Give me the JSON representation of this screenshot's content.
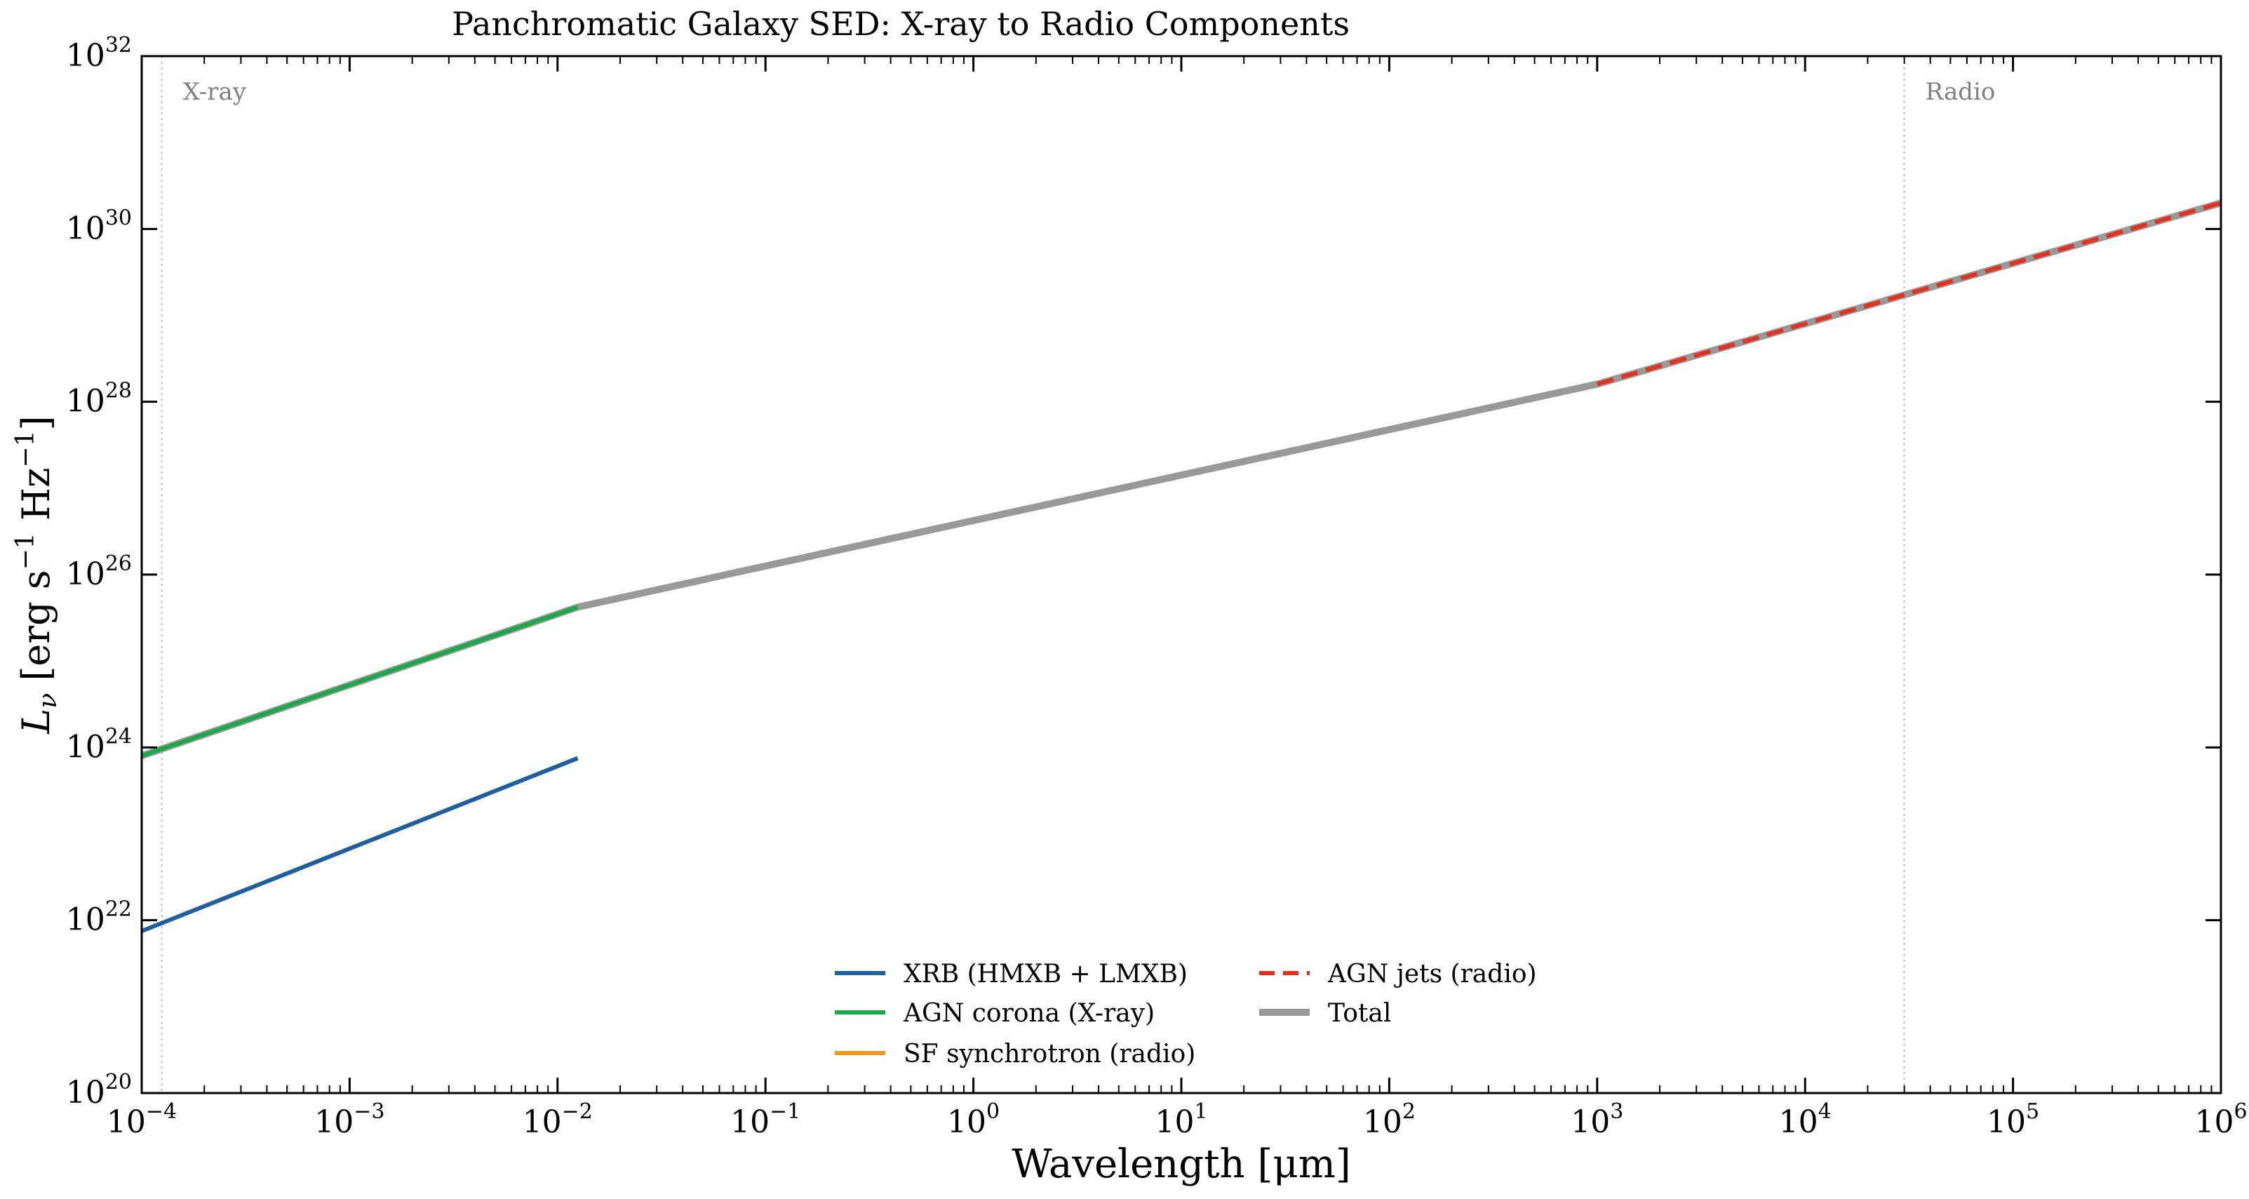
{
  "chart_data": {
    "type": "line",
    "title": "Panchromatic Galaxy SED: X-ray to Radio Components",
    "xlabel": "Wavelength [μm]",
    "ylabel": "Lν [erg s⁻¹ Hz⁻¹]",
    "ylabel_parts": {
      "symbol": "L",
      "subscript": "ν",
      "units_a": " [erg s",
      "exp1": "−1",
      "units_b": " Hz",
      "exp2": "−1",
      "units_c": "]"
    },
    "xscale": "log",
    "yscale": "log",
    "xlim": [
      0.0001,
      1000000
    ],
    "ylim": [
      1e+20,
      1e+32
    ],
    "x_tick_exponents": [
      -4,
      -3,
      -2,
      -1,
      0,
      1,
      2,
      3,
      4,
      5,
      6
    ],
    "y_tick_exponents": [
      20,
      22,
      24,
      26,
      28,
      30,
      32
    ],
    "tick_base": "10",
    "grid": false,
    "legend_position": "lower-center",
    "band_markers": [
      {
        "label": "X-ray",
        "x": 0.000125
      },
      {
        "label": "Radio",
        "x": 30000
      }
    ],
    "series": [
      {
        "name": "XRB (HMXB + LMXB)",
        "color": "#1f5fa0",
        "dash": "solid",
        "x": [
          0.0001,
          0.0125
        ],
        "y": [
          7.5e+21,
          7.5e+23
        ]
      },
      {
        "name": "AGN corona (X-ray)",
        "color": "#1aa84a",
        "dash": "solid",
        "x": [
          0.0001,
          0.0125
        ],
        "y": [
          8e+23,
          4.2e+25
        ]
      },
      {
        "name": "SF synchrotron (radio)",
        "color": "#f5961e",
        "dash": "solid",
        "x": [],
        "y": []
      },
      {
        "name": "AGN jets (radio)",
        "color": "#e0321e",
        "dash": "dashed",
        "x": [
          1000,
          1000000
        ],
        "y": [
          1.6e+28,
          2e+30
        ]
      },
      {
        "name": "Total",
        "color": "#999999",
        "dash": "solid",
        "x": [
          0.0001,
          0.0125,
          1000,
          1000000
        ],
        "y": [
          8e+23,
          4.2e+25,
          1.6e+28,
          2e+30
        ]
      }
    ]
  }
}
